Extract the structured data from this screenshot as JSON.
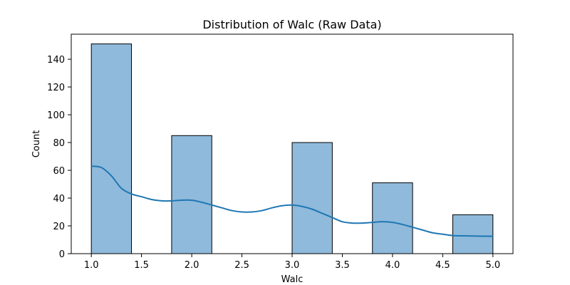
{
  "chart_data": {
    "type": "bar",
    "title": "Distribution of Walc (Raw Data)",
    "xlabel": "Walc",
    "ylabel": "Count",
    "xlim": [
      0.8,
      5.2
    ],
    "ylim": [
      0,
      158
    ],
    "xticks": [
      "1.0",
      "1.5",
      "2.0",
      "2.5",
      "3.0",
      "3.5",
      "4.0",
      "4.5",
      "5.0"
    ],
    "yticks": [
      "0",
      "20",
      "40",
      "60",
      "80",
      "100",
      "120",
      "140"
    ],
    "bins": [
      {
        "start": 1.0,
        "end": 1.4,
        "count": 151
      },
      {
        "start": 1.8,
        "end": 2.2,
        "count": 85
      },
      {
        "start": 3.0,
        "end": 3.4,
        "count": 80
      },
      {
        "start": 3.8,
        "end": 4.2,
        "count": 51
      },
      {
        "start": 4.6,
        "end": 5.0,
        "count": 28
      }
    ],
    "kde": {
      "x": [
        1.0,
        1.1,
        1.2,
        1.3,
        1.4,
        1.5,
        1.6,
        1.7,
        1.8,
        1.9,
        2.0,
        2.1,
        2.2,
        2.3,
        2.4,
        2.5,
        2.6,
        2.7,
        2.8,
        2.9,
        3.0,
        3.1,
        3.2,
        3.3,
        3.4,
        3.5,
        3.6,
        3.7,
        3.8,
        3.9,
        4.0,
        4.1,
        4.2,
        4.3,
        4.4,
        4.5,
        4.6,
        4.7,
        4.8,
        4.9,
        5.0
      ],
      "y": [
        63,
        62,
        56,
        47,
        43,
        41,
        39,
        38,
        38,
        38.5,
        38.5,
        37,
        35,
        33,
        31,
        30,
        30,
        31,
        33,
        34.5,
        35,
        34,
        32,
        29,
        26,
        23,
        22,
        22,
        22.5,
        23,
        22.5,
        21,
        19,
        17,
        15,
        14,
        13,
        12.8,
        12.7,
        12.6,
        12.5
      ]
    },
    "colors": {
      "bar_fill": "#8fbadb",
      "bar_edge": "#000000",
      "kde_line": "#1f77b4"
    },
    "grid": false,
    "legend": "none"
  }
}
